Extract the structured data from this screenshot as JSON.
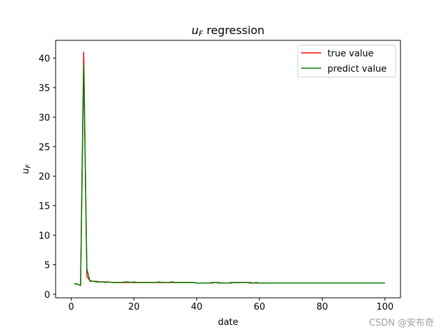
{
  "chart_data": {
    "type": "line",
    "title_main": "u",
    "title_sub": "F",
    "title_rest": " regression",
    "xlabel": "date",
    "ylabel_main": "u",
    "ylabel_sub": "F",
    "xlim": [
      -4.95,
      104.95
    ],
    "ylim": [
      -0.6,
      43.0
    ],
    "xticks": [
      0,
      20,
      40,
      60,
      80,
      100
    ],
    "yticks": [
      0,
      5,
      10,
      15,
      20,
      25,
      30,
      35,
      40
    ],
    "grid": false,
    "legend_position": "upper right",
    "x": [
      1,
      2,
      3,
      4,
      5,
      6,
      7,
      8,
      9,
      10,
      11,
      12,
      13,
      14,
      15,
      16,
      17,
      18,
      19,
      20,
      21,
      22,
      23,
      24,
      25,
      26,
      27,
      28,
      29,
      30,
      31,
      32,
      33,
      34,
      35,
      36,
      37,
      38,
      39,
      40,
      41,
      42,
      43,
      44,
      45,
      46,
      47,
      48,
      49,
      50,
      51,
      52,
      53,
      54,
      55,
      56,
      57,
      58,
      59,
      60,
      61,
      62,
      63,
      64,
      65,
      66,
      67,
      68,
      69,
      70,
      71,
      72,
      73,
      74,
      75,
      76,
      77,
      78,
      79,
      80,
      81,
      82,
      83,
      84,
      85,
      86,
      87,
      88,
      89,
      90,
      91,
      92,
      93,
      94,
      95,
      96,
      97,
      98,
      99,
      100
    ],
    "series": [
      {
        "name": "true value",
        "color": "#ff0000",
        "values": [
          1.8,
          1.7,
          1.5,
          41.0,
          3.0,
          2.3,
          2.2,
          2.2,
          2.1,
          2.1,
          2.1,
          2.1,
          2.0,
          2.0,
          2.0,
          2.0,
          2.0,
          2.0,
          2.0,
          2.0,
          2.0,
          2.0,
          2.0,
          2.0,
          2.0,
          2.0,
          2.0,
          2.0,
          2.0,
          2.0,
          2.0,
          2.0,
          2.0,
          2.0,
          2.0,
          2.0,
          2.0,
          2.0,
          2.0,
          1.9,
          1.9,
          1.9,
          1.9,
          1.9,
          1.9,
          2.0,
          2.0,
          1.9,
          1.9,
          1.9,
          1.9,
          2.0,
          2.0,
          2.0,
          2.0,
          2.0,
          2.0,
          1.9,
          1.9,
          1.9,
          1.9,
          1.9,
          1.9,
          1.9,
          1.9,
          1.9,
          1.9,
          1.9,
          1.9,
          1.9,
          1.9,
          1.9,
          1.9,
          1.9,
          1.9,
          1.9,
          1.9,
          1.9,
          1.9,
          1.9,
          1.9,
          1.9,
          1.9,
          1.9,
          1.9,
          1.9,
          1.9,
          1.9,
          1.9,
          1.9,
          1.9,
          1.9,
          1.9,
          1.9,
          1.9,
          1.9,
          1.9,
          1.9,
          1.9,
          1.9
        ]
      },
      {
        "name": "predict value",
        "color": "#008000",
        "values": [
          1.8,
          1.7,
          1.5,
          39.0,
          4.3,
          2.2,
          2.2,
          2.1,
          2.1,
          2.1,
          2.0,
          2.1,
          2.0,
          2.0,
          2.0,
          2.0,
          2.1,
          2.1,
          2.0,
          2.1,
          2.0,
          2.0,
          2.0,
          2.0,
          2.0,
          2.0,
          2.0,
          2.1,
          2.0,
          2.0,
          2.0,
          2.1,
          2.0,
          2.0,
          2.0,
          2.0,
          2.0,
          2.0,
          2.0,
          1.9,
          1.9,
          1.9,
          1.9,
          1.9,
          2.0,
          2.0,
          1.9,
          1.9,
          1.9,
          1.9,
          2.0,
          2.0,
          2.0,
          2.0,
          2.0,
          2.0,
          1.9,
          1.9,
          2.0,
          1.9,
          1.9,
          1.9,
          1.9,
          1.9,
          1.9,
          1.9,
          1.9,
          1.9,
          1.9,
          1.9,
          1.9,
          1.9,
          1.9,
          1.9,
          1.9,
          1.9,
          1.9,
          1.9,
          1.9,
          1.9,
          1.9,
          1.9,
          1.9,
          1.9,
          1.9,
          1.9,
          1.9,
          1.9,
          1.9,
          1.9,
          1.9,
          1.9,
          1.9,
          1.9,
          1.9,
          1.9,
          1.9,
          1.9,
          1.9,
          1.9
        ]
      }
    ]
  },
  "watermark": "CSDN @安布奇"
}
